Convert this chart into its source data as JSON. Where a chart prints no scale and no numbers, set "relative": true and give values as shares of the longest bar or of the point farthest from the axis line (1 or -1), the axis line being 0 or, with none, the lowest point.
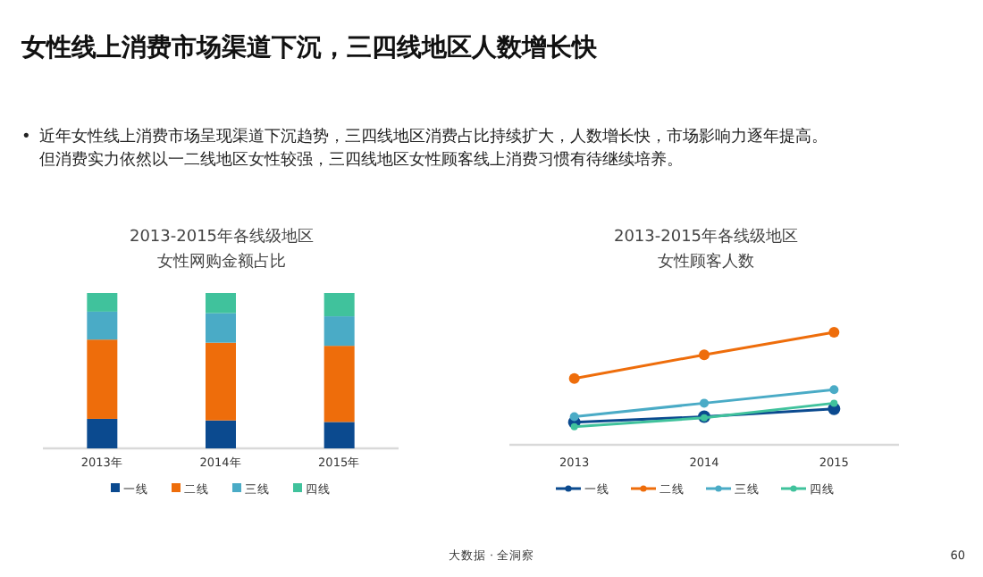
{
  "chart_data": [
    {
      "type": "other",
      "title": "女性线上消费市场渠道下沉，三四线地区人数增长快",
      "annotations": [
        "•",
        "近年女性线上消费市场呈现渠道下沉趋势，三四线地区消费占比持续扩大，人数增长快，市场影响力逐年提高。",
        "但消费实力依然以一二线地区女性较强，三四线地区女性顾客线上消费习惯有待继续培养。",
        "大数据 · 全洞察",
        "60"
      ]
    },
    {
      "type": "bar",
      "title": "2013-2015年各线级地区",
      "subtitle": "女性网购金额占比",
      "relative": true,
      "stacked": true,
      "categories": [
        "2013年",
        "2014年",
        "2015年"
      ],
      "series": [
        {
          "name": "一线",
          "color": "#0b4a8f",
          "values": [
            0.19,
            0.18,
            0.17
          ]
        },
        {
          "name": "二线",
          "color": "#ee6d0b",
          "values": [
            0.51,
            0.5,
            0.49
          ]
        },
        {
          "name": "三线",
          "color": "#4aabc6",
          "values": [
            0.18,
            0.19,
            0.19
          ]
        },
        {
          "name": "四线",
          "color": "#40c29c",
          "values": [
            0.12,
            0.13,
            0.15
          ]
        }
      ],
      "legend": "bottom"
    },
    {
      "type": "line",
      "title": "2013-2015年各线级地区",
      "subtitle": "女性顾客人数",
      "relative": true,
      "categories": [
        "2013",
        "2014",
        "2015"
      ],
      "series": [
        {
          "name": "一线",
          "color": "#0b4a8f",
          "values": [
            0.2,
            0.25,
            0.32
          ]
        },
        {
          "name": "二线",
          "color": "#ee6d0b",
          "values": [
            0.59,
            0.8,
            1
          ]
        },
        {
          "name": "三线",
          "color": "#4aabc6",
          "values": [
            0.25,
            0.37,
            0.49
          ]
        },
        {
          "name": "四线",
          "color": "#40c29c",
          "values": [
            0.16,
            0.24,
            0.37
          ]
        }
      ],
      "marker": "circle",
      "line_style": "solid",
      "legend": "bottom"
    }
  ]
}
